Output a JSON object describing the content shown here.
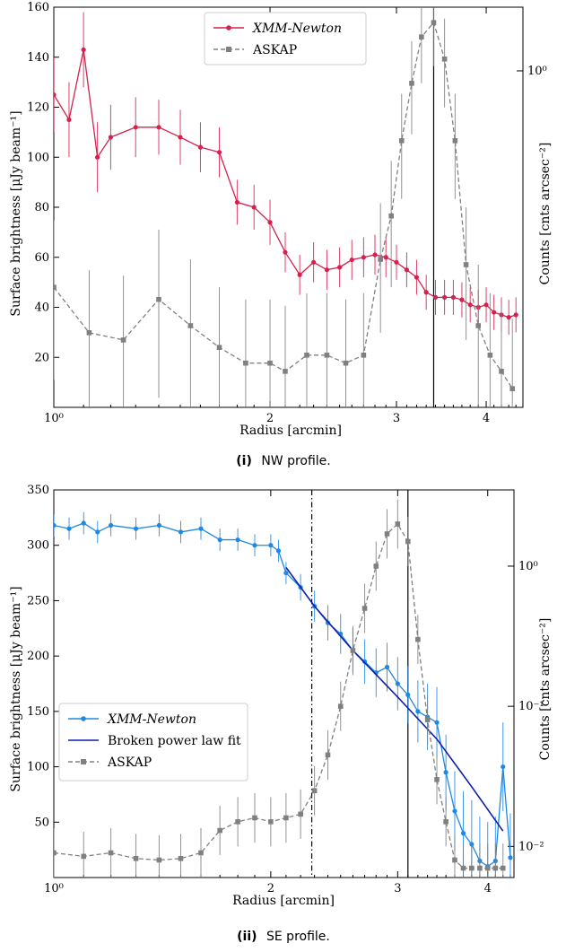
{
  "chart_data": [
    {
      "type": "line",
      "caption_num": "(i)",
      "caption_text": "NW profile.",
      "xlabel": "Radius [arcmin]",
      "ylabel": "Surface brightness [μJy beam⁻¹]",
      "y2label": "Counts [cnts arcsec⁻²]",
      "x_scale": "log",
      "xlim": [
        1.0,
        4.5
      ],
      "ylim": [
        0,
        160
      ],
      "y2_scale": "log",
      "y2lim": [
        0.25,
        1.3
      ],
      "x_ticks": [
        1,
        2,
        3,
        4
      ],
      "x_tick_labels": [
        "10⁰",
        "2",
        "3",
        "4"
      ],
      "y_ticks": [
        20,
        40,
        60,
        80,
        100,
        120,
        140,
        160
      ],
      "y2_ticks": [
        1.0
      ],
      "y2_tick_labels": [
        "10⁰"
      ],
      "vlines": [
        {
          "x": 3.38,
          "style": "solid"
        }
      ],
      "legend_loc": "upper center",
      "series": [
        {
          "name": "XMM-Newton",
          "color": "#d6204e",
          "marker": "circle",
          "axis": "left",
          "x": [
            1.0,
            1.05,
            1.1,
            1.15,
            1.2,
            1.3,
            1.4,
            1.5,
            1.6,
            1.7,
            1.8,
            1.9,
            2.0,
            2.1,
            2.2,
            2.3,
            2.4,
            2.5,
            2.6,
            2.7,
            2.8,
            2.9,
            3.0,
            3.1,
            3.2,
            3.3,
            3.4,
            3.5,
            3.6,
            3.7,
            3.8,
            3.9,
            4.0,
            4.1,
            4.2,
            4.3,
            4.4
          ],
          "y": [
            125,
            115,
            143,
            100,
            108,
            112,
            112,
            108,
            104,
            102,
            82,
            80,
            74,
            62,
            53,
            58,
            55,
            56,
            59,
            60,
            61,
            60,
            58,
            55,
            52,
            46,
            44,
            44,
            44,
            43,
            41,
            40,
            41,
            38,
            37,
            36,
            37
          ],
          "yerr": [
            15,
            15,
            15,
            14,
            13,
            12,
            11,
            11,
            10,
            10,
            9,
            9,
            9,
            8,
            8,
            8,
            8,
            8,
            8,
            8,
            8,
            8,
            7,
            7,
            7,
            7,
            7,
            7,
            7,
            7,
            7,
            7,
            7,
            7,
            7,
            7,
            7
          ]
        },
        {
          "name": "ASKAP",
          "color": "#808080",
          "marker": "square",
          "axis": "right",
          "x": [
            1.0,
            1.12,
            1.25,
            1.4,
            1.55,
            1.7,
            1.85,
            2.0,
            2.1,
            2.25,
            2.4,
            2.55,
            2.7,
            2.85,
            2.95,
            3.05,
            3.15,
            3.25,
            3.38,
            3.5,
            3.62,
            3.75,
            3.9,
            4.05,
            4.2,
            4.35
          ],
          "y": [
            0.41,
            0.34,
            0.33,
            0.39,
            0.35,
            0.32,
            0.3,
            0.3,
            0.29,
            0.31,
            0.31,
            0.3,
            0.31,
            0.46,
            0.55,
            0.75,
            0.95,
            1.15,
            1.22,
            1.05,
            0.75,
            0.45,
            0.35,
            0.31,
            0.29,
            0.27
          ],
          "yerr": [
            0.13,
            0.1,
            0.1,
            0.13,
            0.11,
            0.09,
            0.09,
            0.09,
            0.09,
            0.09,
            0.09,
            0.09,
            0.09,
            0.12,
            0.14,
            0.16,
            0.18,
            0.2,
            0.2,
            0.19,
            0.16,
            0.12,
            0.1,
            0.09,
            0.09,
            0.09
          ]
        }
      ]
    },
    {
      "type": "line",
      "caption_num": "(ii)",
      "caption_text": "SE profile.",
      "xlabel": "Radius [arcmin]",
      "ylabel": "Surface brightness [μJy beam⁻¹]",
      "y2label": "Counts [cnts arcsec⁻²]",
      "x_scale": "log",
      "xlim": [
        1.0,
        4.35
      ],
      "ylim": [
        0,
        350
      ],
      "y2_scale": "log",
      "y2lim": [
        0.006,
        3.5
      ],
      "x_ticks": [
        1,
        2,
        3,
        4
      ],
      "x_tick_labels": [
        "10⁰",
        "2",
        "3",
        "4"
      ],
      "y_ticks": [
        50,
        100,
        150,
        200,
        250,
        300,
        350
      ],
      "y2_ticks": [
        0.01,
        0.1,
        1.0
      ],
      "y2_tick_labels": [
        "10⁻²",
        "10⁻¹",
        "10⁰"
      ],
      "vlines": [
        {
          "x": 2.28,
          "style": "dashdot"
        },
        {
          "x": 3.1,
          "style": "solid"
        }
      ],
      "legend_loc": "center left",
      "series": [
        {
          "name": "XMM-Newton",
          "color": "#1e88e5",
          "marker": "circle",
          "axis": "left",
          "x": [
            1.0,
            1.05,
            1.1,
            1.15,
            1.2,
            1.3,
            1.4,
            1.5,
            1.6,
            1.7,
            1.8,
            1.9,
            2.0,
            2.05,
            2.1,
            2.2,
            2.3,
            2.4,
            2.5,
            2.6,
            2.7,
            2.8,
            2.9,
            3.0,
            3.1,
            3.2,
            3.3,
            3.4,
            3.5,
            3.6,
            3.7,
            3.8,
            3.9,
            4.0,
            4.1,
            4.2,
            4.3
          ],
          "y": [
            318,
            315,
            320,
            312,
            318,
            315,
            318,
            312,
            315,
            305,
            305,
            300,
            300,
            295,
            275,
            262,
            245,
            230,
            220,
            205,
            195,
            185,
            190,
            175,
            165,
            150,
            145,
            140,
            95,
            60,
            40,
            30,
            15,
            10,
            15,
            100,
            18
          ],
          "yerr": [
            10,
            10,
            10,
            10,
            10,
            10,
            10,
            10,
            10,
            10,
            10,
            10,
            10,
            10,
            10,
            12,
            14,
            16,
            18,
            20,
            20,
            22,
            22,
            24,
            26,
            28,
            30,
            32,
            34,
            36,
            38,
            40,
            40,
            40,
            40,
            40,
            40
          ]
        },
        {
          "name": "Broken power law fit",
          "color": "#0d1fb0",
          "marker": "none",
          "axis": "left",
          "x": [
            2.1,
            2.3,
            2.6,
            3.0,
            3.4,
            3.8,
            4.2
          ],
          "y": [
            280,
            245,
            205,
            163,
            125,
            82,
            42
          ]
        },
        {
          "name": "ASKAP",
          "color": "#808080",
          "marker": "square",
          "axis": "right",
          "x": [
            1.0,
            1.1,
            1.2,
            1.3,
            1.4,
            1.5,
            1.6,
            1.7,
            1.8,
            1.9,
            2.0,
            2.1,
            2.2,
            2.3,
            2.4,
            2.5,
            2.6,
            2.7,
            2.8,
            2.9,
            3.0,
            3.1,
            3.2,
            3.3,
            3.4,
            3.5,
            3.6,
            3.7,
            3.8,
            3.9,
            4.0,
            4.1,
            4.2
          ],
          "y": [
            0.009,
            0.0085,
            0.009,
            0.0082,
            0.008,
            0.0082,
            0.009,
            0.013,
            0.015,
            0.016,
            0.015,
            0.016,
            0.017,
            0.025,
            0.045,
            0.1,
            0.25,
            0.5,
            1.0,
            1.7,
            2.0,
            1.5,
            0.3,
            0.08,
            0.03,
            0.015,
            0.008,
            0.007,
            0.007,
            0.007,
            0.007,
            0.007,
            0.007
          ],
          "yerr_factor": 1.5
        }
      ]
    }
  ]
}
